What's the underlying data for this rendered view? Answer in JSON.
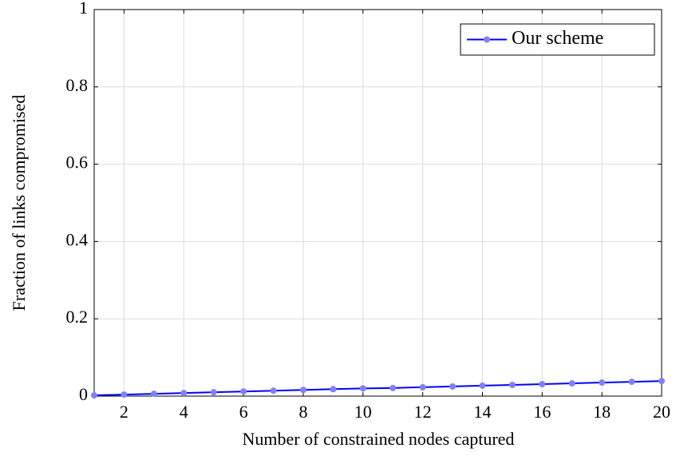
{
  "chart_data": {
    "type": "line",
    "x_label": "Number of constrained nodes captured",
    "y_label": "Fraction of links compromised",
    "x": [
      1,
      2,
      3,
      4,
      5,
      6,
      7,
      8,
      9,
      10,
      11,
      12,
      13,
      14,
      15,
      16,
      17,
      18,
      19,
      20
    ],
    "series": [
      {
        "name": "Our scheme",
        "color": "#0000ff",
        "marker_color": "#8080ff",
        "values": [
          0.002,
          0.004,
          0.006,
          0.008,
          0.01,
          0.012,
          0.014,
          0.016,
          0.018,
          0.02,
          0.021,
          0.023,
          0.025,
          0.027,
          0.029,
          0.031,
          0.033,
          0.035,
          0.037,
          0.039
        ]
      }
    ],
    "xlim": [
      1,
      20
    ],
    "xticks": [
      2,
      4,
      6,
      8,
      10,
      12,
      14,
      16,
      18,
      20
    ],
    "ylim": [
      0,
      1
    ],
    "yticks": [
      0,
      0.2,
      0.4,
      0.6,
      0.8,
      1
    ],
    "grid": true,
    "legend": "top-right"
  }
}
